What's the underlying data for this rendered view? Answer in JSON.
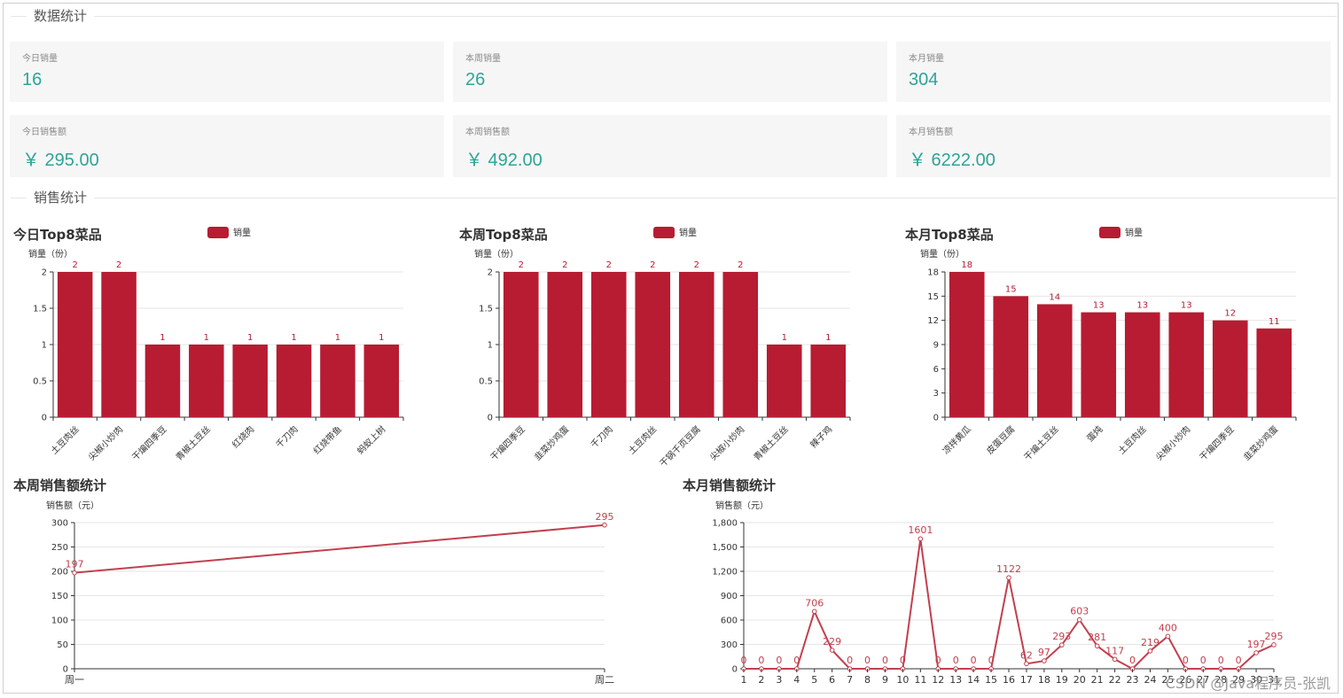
{
  "sections": {
    "data_stats": "数据统计",
    "sales_stats": "销售统计"
  },
  "cards": [
    {
      "label": "今日销量",
      "value": "16"
    },
    {
      "label": "本周销量",
      "value": "26"
    },
    {
      "label": "本月销量",
      "value": "304"
    },
    {
      "label": "今日销售额",
      "value": "￥ 295.00"
    },
    {
      "label": "本周销售额",
      "value": "￥ 492.00"
    },
    {
      "label": "本月销售额",
      "value": "￥ 6222.00"
    }
  ],
  "colors": {
    "bar": "#b71c32",
    "line": "#c2404e",
    "card_value": "#2ea497",
    "grid": "#e6e6e6"
  },
  "chart_data": [
    {
      "type": "bar",
      "title": "今日Top8菜品",
      "legend": "销量",
      "ylabel": "销量（份）",
      "categories": [
        "土豆肉丝",
        "尖椒小炒肉",
        "干煸四季豆",
        "青椒土豆丝",
        "红烧肉",
        "千刀肉",
        "红烧带鱼",
        "蚂蚁上树"
      ],
      "values": [
        2,
        2,
        1,
        1,
        1,
        1,
        1,
        1
      ],
      "ylim": [
        0,
        2
      ],
      "yticks": [
        "0",
        "0.5",
        "1",
        "1.5",
        "2"
      ]
    },
    {
      "type": "bar",
      "title": "本周Top8菜品",
      "legend": "销量",
      "ylabel": "销量（份）",
      "categories": [
        "干煸四季豆",
        "韭菜炒鸡蛋",
        "千刀肉",
        "土豆肉丝",
        "干锅千页豆腐",
        "尖椒小炒肉",
        "青椒土豆丝",
        "辣子鸡"
      ],
      "values": [
        2,
        2,
        2,
        2,
        2,
        2,
        1,
        1
      ],
      "ylim": [
        0,
        2
      ],
      "yticks": [
        "0",
        "0.5",
        "1",
        "1.5",
        "2"
      ]
    },
    {
      "type": "bar",
      "title": "本月Top8菜品",
      "legend": "销量",
      "ylabel": "销量（份）",
      "categories": [
        "凉拌黄瓜",
        "皮蛋豆腐",
        "干煸土豆丝",
        "蛋炖",
        "土豆肉丝",
        "尖椒小炒肉",
        "干煸四季豆",
        "韭菜炒鸡蛋"
      ],
      "values": [
        18,
        15,
        14,
        13,
        13,
        13,
        12,
        11
      ],
      "ylim": [
        0,
        18
      ],
      "yticks": [
        "0",
        "3",
        "6",
        "9",
        "12",
        "15",
        "18"
      ]
    },
    {
      "type": "line",
      "title": "本周销售额统计",
      "ylabel": "销售额（元）",
      "x": [
        "周一",
        "周二"
      ],
      "values": [
        197,
        295
      ],
      "ylim": [
        0,
        300
      ],
      "yticks": [
        "0",
        "50",
        "100",
        "150",
        "200",
        "250",
        "300"
      ]
    },
    {
      "type": "line",
      "title": "本月销售额统计",
      "ylabel": "销售额（元）",
      "x": [
        "1",
        "2",
        "3",
        "4",
        "5",
        "6",
        "7",
        "8",
        "9",
        "10",
        "11",
        "12",
        "13",
        "14",
        "15",
        "16",
        "17",
        "18",
        "19",
        "20",
        "21",
        "22",
        "23",
        "24",
        "25",
        "26",
        "27",
        "28",
        "29",
        "30",
        "31"
      ],
      "values": [
        0,
        0,
        0,
        0,
        706,
        229,
        0,
        0,
        0,
        0,
        1601,
        0,
        0,
        0,
        0,
        1122,
        62,
        97,
        293,
        603,
        281,
        117,
        0,
        219,
        400,
        0,
        0,
        0,
        0,
        197,
        295
      ],
      "ylim": [
        0,
        1800
      ],
      "yticks": [
        "0",
        "300",
        "600",
        "900",
        "1,200",
        "1,500",
        "1,800"
      ]
    }
  ],
  "watermark": "CSDN @Java程序员-张凯"
}
